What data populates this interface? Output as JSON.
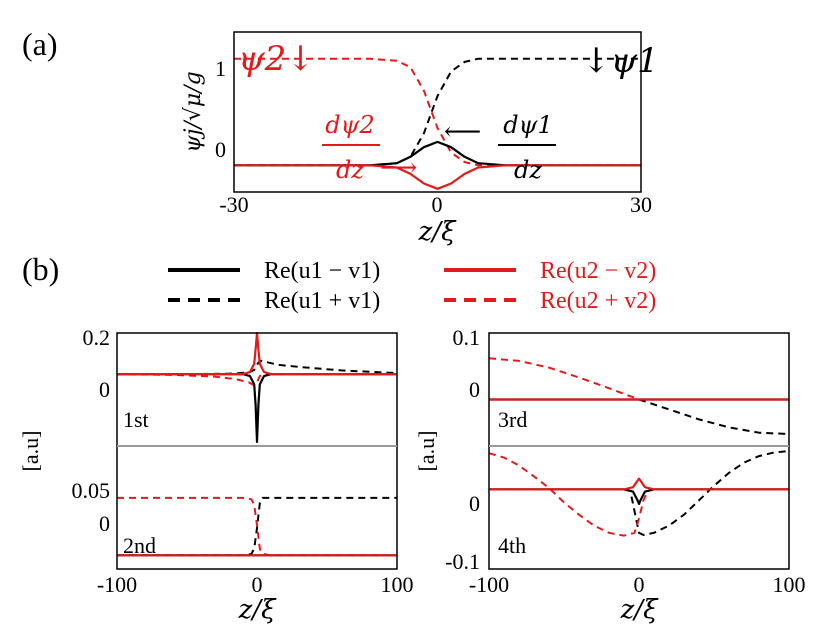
{
  "panel_a": {
    "label": "(a)",
    "ylabel": "ψj/√μ/g",
    "xlabel": "z/ξ",
    "x_ticks": [
      "-30",
      "0",
      "30"
    ],
    "y_ticks": [
      "0",
      "1"
    ],
    "annotations": {
      "psi2": "ψ2↓",
      "psi1": "↓ψ1",
      "dpsi2_num": "dψ2",
      "dpsi2_den": "dz",
      "dpsi1_num": "dψ1",
      "dpsi1_den": "dz",
      "arrow_glyph": "⟵",
      "arrow_right_glyph": "⟶"
    }
  },
  "panel_b": {
    "label": "(b)",
    "legend": [
      {
        "text": "Re(u1 − v1)",
        "color": "#000000",
        "style": "solid"
      },
      {
        "text": "Re(u2 − v2)",
        "color": "#e31a1c",
        "style": "solid"
      },
      {
        "text": "Re(u1 + v1)",
        "color": "#000000",
        "style": "dashed"
      },
      {
        "text": "Re(u2 + v2)",
        "color": "#e31a1c",
        "style": "dashed"
      }
    ],
    "ylabel": "[a.u]",
    "xlabel": "z/ξ",
    "x_ticks": [
      "-100",
      "0",
      "100"
    ],
    "modes": [
      {
        "label": "1st",
        "y_ticks": [
          "0.2",
          "0"
        ]
      },
      {
        "label": "2nd",
        "y_ticks": [
          "0.05",
          "0"
        ]
      },
      {
        "label": "3rd",
        "y_ticks": [
          "0.1",
          "0"
        ]
      },
      {
        "label": "4th",
        "y_ticks": [
          "0",
          "-0.1"
        ]
      }
    ]
  },
  "colors": {
    "black": "#000000",
    "red": "#e31a1c",
    "axis": "#000000",
    "divider": "#999999"
  },
  "chart_data": [
    {
      "type": "line",
      "panel": "(a)",
      "xlabel": "z/ξ",
      "ylabel": "ψj/√μ/g",
      "xlim": [
        -30,
        30
      ],
      "ylim": [
        -0.25,
        1.25
      ],
      "series": [
        {
          "color": "#000000",
          "style": "dashed",
          "x": [
            -30,
            -10,
            -6,
            -4,
            -2,
            0,
            2,
            4,
            6,
            10,
            30
          ],
          "y": [
            0,
            0,
            0.02,
            0.08,
            0.3,
            0.65,
            0.88,
            0.97,
            1,
            1,
            1
          ]
        },
        {
          "color": "#e31a1c",
          "style": "dashed",
          "x": [
            -30,
            -10,
            -6,
            -4,
            -2,
            0,
            2,
            4,
            6,
            10,
            30
          ],
          "y": [
            1,
            1,
            0.98,
            0.92,
            0.7,
            0.35,
            0.12,
            0.03,
            0,
            0,
            0
          ]
        },
        {
          "color": "#000000",
          "style": "solid",
          "x": [
            -30,
            -10,
            -6,
            -4,
            -2,
            0,
            2,
            4,
            6,
            10,
            30
          ],
          "y": [
            0,
            0,
            0.02,
            0.08,
            0.17,
            0.22,
            0.17,
            0.08,
            0.02,
            0,
            0
          ]
        },
        {
          "color": "#e31a1c",
          "style": "solid",
          "x": [
            -30,
            -10,
            -6,
            -4,
            -2,
            0,
            2,
            4,
            6,
            10,
            30
          ],
          "y": [
            0,
            0,
            -0.02,
            -0.08,
            -0.17,
            -0.22,
            -0.17,
            -0.08,
            -0.02,
            0,
            0
          ]
        }
      ]
    },
    {
      "type": "line",
      "panel": "(b) 1st",
      "xlim": [
        -100,
        100
      ],
      "ylim": [
        -0.35,
        0.2
      ],
      "series": [
        {
          "color": "#000000",
          "style": "dashed",
          "x": [
            -100,
            -60,
            -30,
            -15,
            -6,
            -2,
            0,
            2,
            6,
            15,
            30,
            60,
            100
          ],
          "y": [
            0,
            0,
            0.001,
            0.003,
            0.008,
            0.02,
            0.045,
            0.065,
            0.06,
            0.045,
            0.035,
            0.018,
            0.005
          ]
        },
        {
          "color": "#e31a1c",
          "style": "dashed",
          "x": [
            -100,
            -60,
            -30,
            -15,
            -6,
            -2,
            0,
            2,
            6,
            15,
            30,
            60,
            100
          ],
          "y": [
            0,
            -0.004,
            -0.012,
            -0.025,
            -0.04,
            -0.055,
            -0.04,
            -0.01,
            0,
            0,
            0,
            0,
            0
          ]
        },
        {
          "color": "#000000",
          "style": "solid",
          "x": [
            -100,
            -10,
            -5,
            -2,
            -1,
            0,
            1,
            2,
            5,
            10,
            100
          ],
          "y": [
            0,
            0,
            -0.01,
            -0.05,
            -0.15,
            -0.33,
            -0.15,
            -0.05,
            -0.01,
            0,
            0
          ]
        },
        {
          "color": "#e31a1c",
          "style": "solid",
          "x": [
            -100,
            -10,
            -5,
            -2,
            -1,
            0,
            1,
            2,
            5,
            10,
            100
          ],
          "y": [
            0,
            0,
            0.01,
            0.05,
            0.12,
            0.2,
            0.12,
            0.05,
            0.01,
            0,
            0
          ]
        }
      ]
    },
    {
      "type": "line",
      "panel": "(b) 2nd",
      "xlim": [
        -100,
        100
      ],
      "ylim": [
        -0.01,
        0.08
      ],
      "series": [
        {
          "color": "#000000",
          "style": "dashed",
          "x": [
            -100,
            -10,
            -4,
            -2,
            0,
            2,
            4,
            10,
            100
          ],
          "y": [
            0,
            0,
            0.001,
            0.005,
            0.02,
            0.038,
            0.042,
            0.042,
            0.042
          ]
        },
        {
          "color": "#e31a1c",
          "style": "dashed",
          "x": [
            -100,
            -10,
            -4,
            -2,
            0,
            2,
            4,
            10,
            100
          ],
          "y": [
            0.042,
            0.042,
            0.041,
            0.037,
            0.022,
            0.005,
            0.001,
            0,
            0
          ]
        },
        {
          "color": "#000000",
          "style": "solid",
          "x": [
            -100,
            100
          ],
          "y": [
            0,
            0
          ]
        },
        {
          "color": "#e31a1c",
          "style": "solid",
          "x": [
            -100,
            100
          ],
          "y": [
            0,
            0
          ]
        }
      ]
    },
    {
      "type": "line",
      "panel": "(b) 3rd",
      "xlim": [
        -100,
        100
      ],
      "ylim": [
        -0.07,
        0.1
      ],
      "series": [
        {
          "color": "#000000",
          "style": "dashed",
          "x": [
            0,
            20,
            40,
            60,
            80,
            100
          ],
          "y": [
            0,
            -0.015,
            -0.03,
            -0.042,
            -0.05,
            -0.052
          ]
        },
        {
          "color": "#e31a1c",
          "style": "dashed",
          "x": [
            -100,
            -80,
            -60,
            -40,
            -20,
            0
          ],
          "y": [
            0.062,
            0.058,
            0.048,
            0.033,
            0.017,
            0
          ]
        },
        {
          "color": "#000000",
          "style": "solid",
          "x": [
            -100,
            100
          ],
          "y": [
            0,
            0
          ]
        },
        {
          "color": "#e31a1c",
          "style": "solid",
          "x": [
            -100,
            100
          ],
          "y": [
            0,
            0
          ]
        }
      ]
    },
    {
      "type": "line",
      "panel": "(b) 4th",
      "xlim": [
        -100,
        100
      ],
      "ylim": [
        -0.11,
        0.06
      ],
      "series": [
        {
          "color": "#000000",
          "style": "dashed",
          "x": [
            -5,
            -2,
            0,
            3,
            10,
            20,
            30,
            40,
            50,
            60,
            70,
            80,
            90,
            100
          ],
          "y": [
            -0.01,
            -0.04,
            -0.06,
            -0.063,
            -0.06,
            -0.05,
            -0.035,
            -0.015,
            0.005,
            0.023,
            0.037,
            0.046,
            0.051,
            0.053
          ]
        },
        {
          "color": "#e31a1c",
          "style": "dashed",
          "x": [
            -100,
            -90,
            -80,
            -70,
            -60,
            -50,
            -40,
            -30,
            -20,
            -10,
            -3,
            0,
            3,
            6
          ],
          "y": [
            0.05,
            0.044,
            0.033,
            0.018,
            0.002,
            -0.018,
            -0.035,
            -0.05,
            -0.06,
            -0.064,
            -0.06,
            -0.04,
            -0.015,
            -0.002
          ]
        },
        {
          "color": "#000000",
          "style": "solid",
          "x": [
            -100,
            -10,
            -4,
            -1,
            0,
            1,
            4,
            10,
            100
          ],
          "y": [
            0,
            0,
            -0.003,
            -0.015,
            -0.02,
            -0.015,
            -0.003,
            0,
            0
          ]
        },
        {
          "color": "#e31a1c",
          "style": "solid",
          "x": [
            -100,
            -10,
            -4,
            -1,
            0,
            1,
            4,
            10,
            100
          ],
          "y": [
            0,
            0,
            0.003,
            0.012,
            0.015,
            0.012,
            0.003,
            0,
            0
          ]
        }
      ]
    }
  ]
}
